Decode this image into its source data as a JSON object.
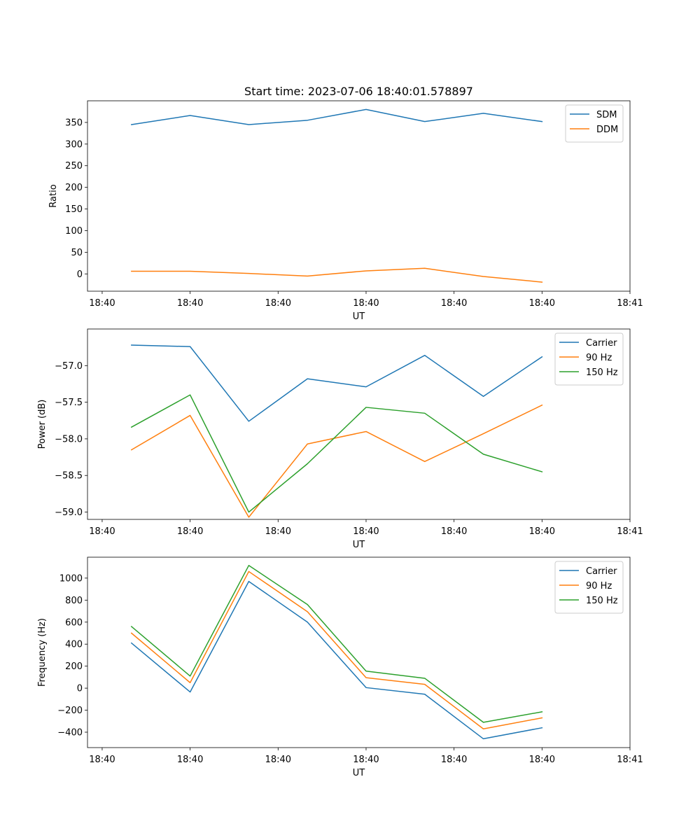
{
  "chart_data": [
    {
      "type": "line",
      "title": "Start time: 2023-07-06 18:40:01.578897",
      "xlabel": "UT",
      "ylabel": "Ratio",
      "x": [
        1,
        2,
        3,
        4,
        5,
        6,
        7,
        8
      ],
      "xlim": [
        0.25,
        9.5
      ],
      "xticks": [
        0.5,
        2,
        3.5,
        5,
        6.5,
        8,
        9.5
      ],
      "xtick_labels": [
        "18:40",
        "18:40",
        "18:40",
        "18:40",
        "18:40",
        "18:40",
        "18:41"
      ],
      "ylim": [
        -40,
        400
      ],
      "yticks": [
        0,
        50,
        100,
        150,
        200,
        250,
        300,
        350
      ],
      "ytick_labels": [
        "0",
        "50",
        "100",
        "150",
        "200",
        "250",
        "300",
        "350"
      ],
      "legend_position": "top-right",
      "grid": false,
      "series": [
        {
          "name": "SDM",
          "color": "#1f77b4",
          "values": [
            345,
            366,
            345,
            355,
            380,
            352,
            371,
            352
          ]
        },
        {
          "name": "DDM",
          "color": "#ff7f0e",
          "values": [
            6,
            6,
            1,
            -5,
            7,
            13,
            -6,
            -19
          ]
        }
      ]
    },
    {
      "type": "line",
      "xlabel": "UT",
      "ylabel": "Power (dB)",
      "x": [
        1,
        2,
        3,
        4,
        5,
        6,
        7,
        8
      ],
      "xlim": [
        0.25,
        9.5
      ],
      "xticks": [
        0.5,
        2,
        3.5,
        5,
        6.5,
        8,
        9.5
      ],
      "xtick_labels": [
        "18:40",
        "18:40",
        "18:40",
        "18:40",
        "18:40",
        "18:40",
        "18:41"
      ],
      "ylim": [
        -59.1,
        -56.5
      ],
      "yticks": [
        -59.0,
        -58.5,
        -58.0,
        -57.5,
        -57.0
      ],
      "ytick_labels": [
        "−59.0",
        "−58.5",
        "−58.0",
        "−57.5",
        "−57.0"
      ],
      "legend_position": "top-right",
      "grid": false,
      "series": [
        {
          "name": "Carrier",
          "color": "#1f77b4",
          "values": [
            -56.72,
            -56.74,
            -57.76,
            -57.18,
            -57.29,
            -56.86,
            -57.42,
            -56.88
          ]
        },
        {
          "name": "90 Hz",
          "color": "#ff7f0e",
          "values": [
            -58.15,
            -57.68,
            -59.07,
            -58.07,
            -57.9,
            -58.31,
            -57.93,
            -57.54
          ]
        },
        {
          "name": "150 Hz",
          "color": "#2ca02c",
          "values": [
            -57.84,
            -57.4,
            -59.0,
            -58.34,
            -57.57,
            -57.65,
            -58.21,
            -58.45
          ]
        }
      ]
    },
    {
      "type": "line",
      "xlabel": "UT",
      "ylabel": "Frequency (Hz)",
      "x": [
        1,
        2,
        3,
        4,
        5,
        6,
        7,
        8
      ],
      "xlim": [
        0.25,
        9.5
      ],
      "xticks": [
        0.5,
        2,
        3.5,
        5,
        6.5,
        8,
        9.5
      ],
      "xtick_labels": [
        "18:40",
        "18:40",
        "18:40",
        "18:40",
        "18:40",
        "18:40",
        "18:41"
      ],
      "ylim": [
        -540,
        1190
      ],
      "yticks": [
        -400,
        -200,
        0,
        200,
        400,
        600,
        800,
        1000
      ],
      "ytick_labels": [
        "−400",
        "−200",
        "0",
        "200",
        "400",
        "600",
        "800",
        "1000"
      ],
      "legend_position": "top-right",
      "grid": false,
      "series": [
        {
          "name": "Carrier",
          "color": "#1f77b4",
          "values": [
            410,
            -35,
            970,
            600,
            5,
            -55,
            -460,
            -360
          ]
        },
        {
          "name": "90 Hz",
          "color": "#ff7f0e",
          "values": [
            500,
            50,
            1060,
            695,
            95,
            35,
            -370,
            -270
          ]
        },
        {
          "name": "150 Hz",
          "color": "#2ca02c",
          "values": [
            560,
            110,
            1115,
            760,
            155,
            90,
            -310,
            -215
          ]
        }
      ]
    }
  ]
}
